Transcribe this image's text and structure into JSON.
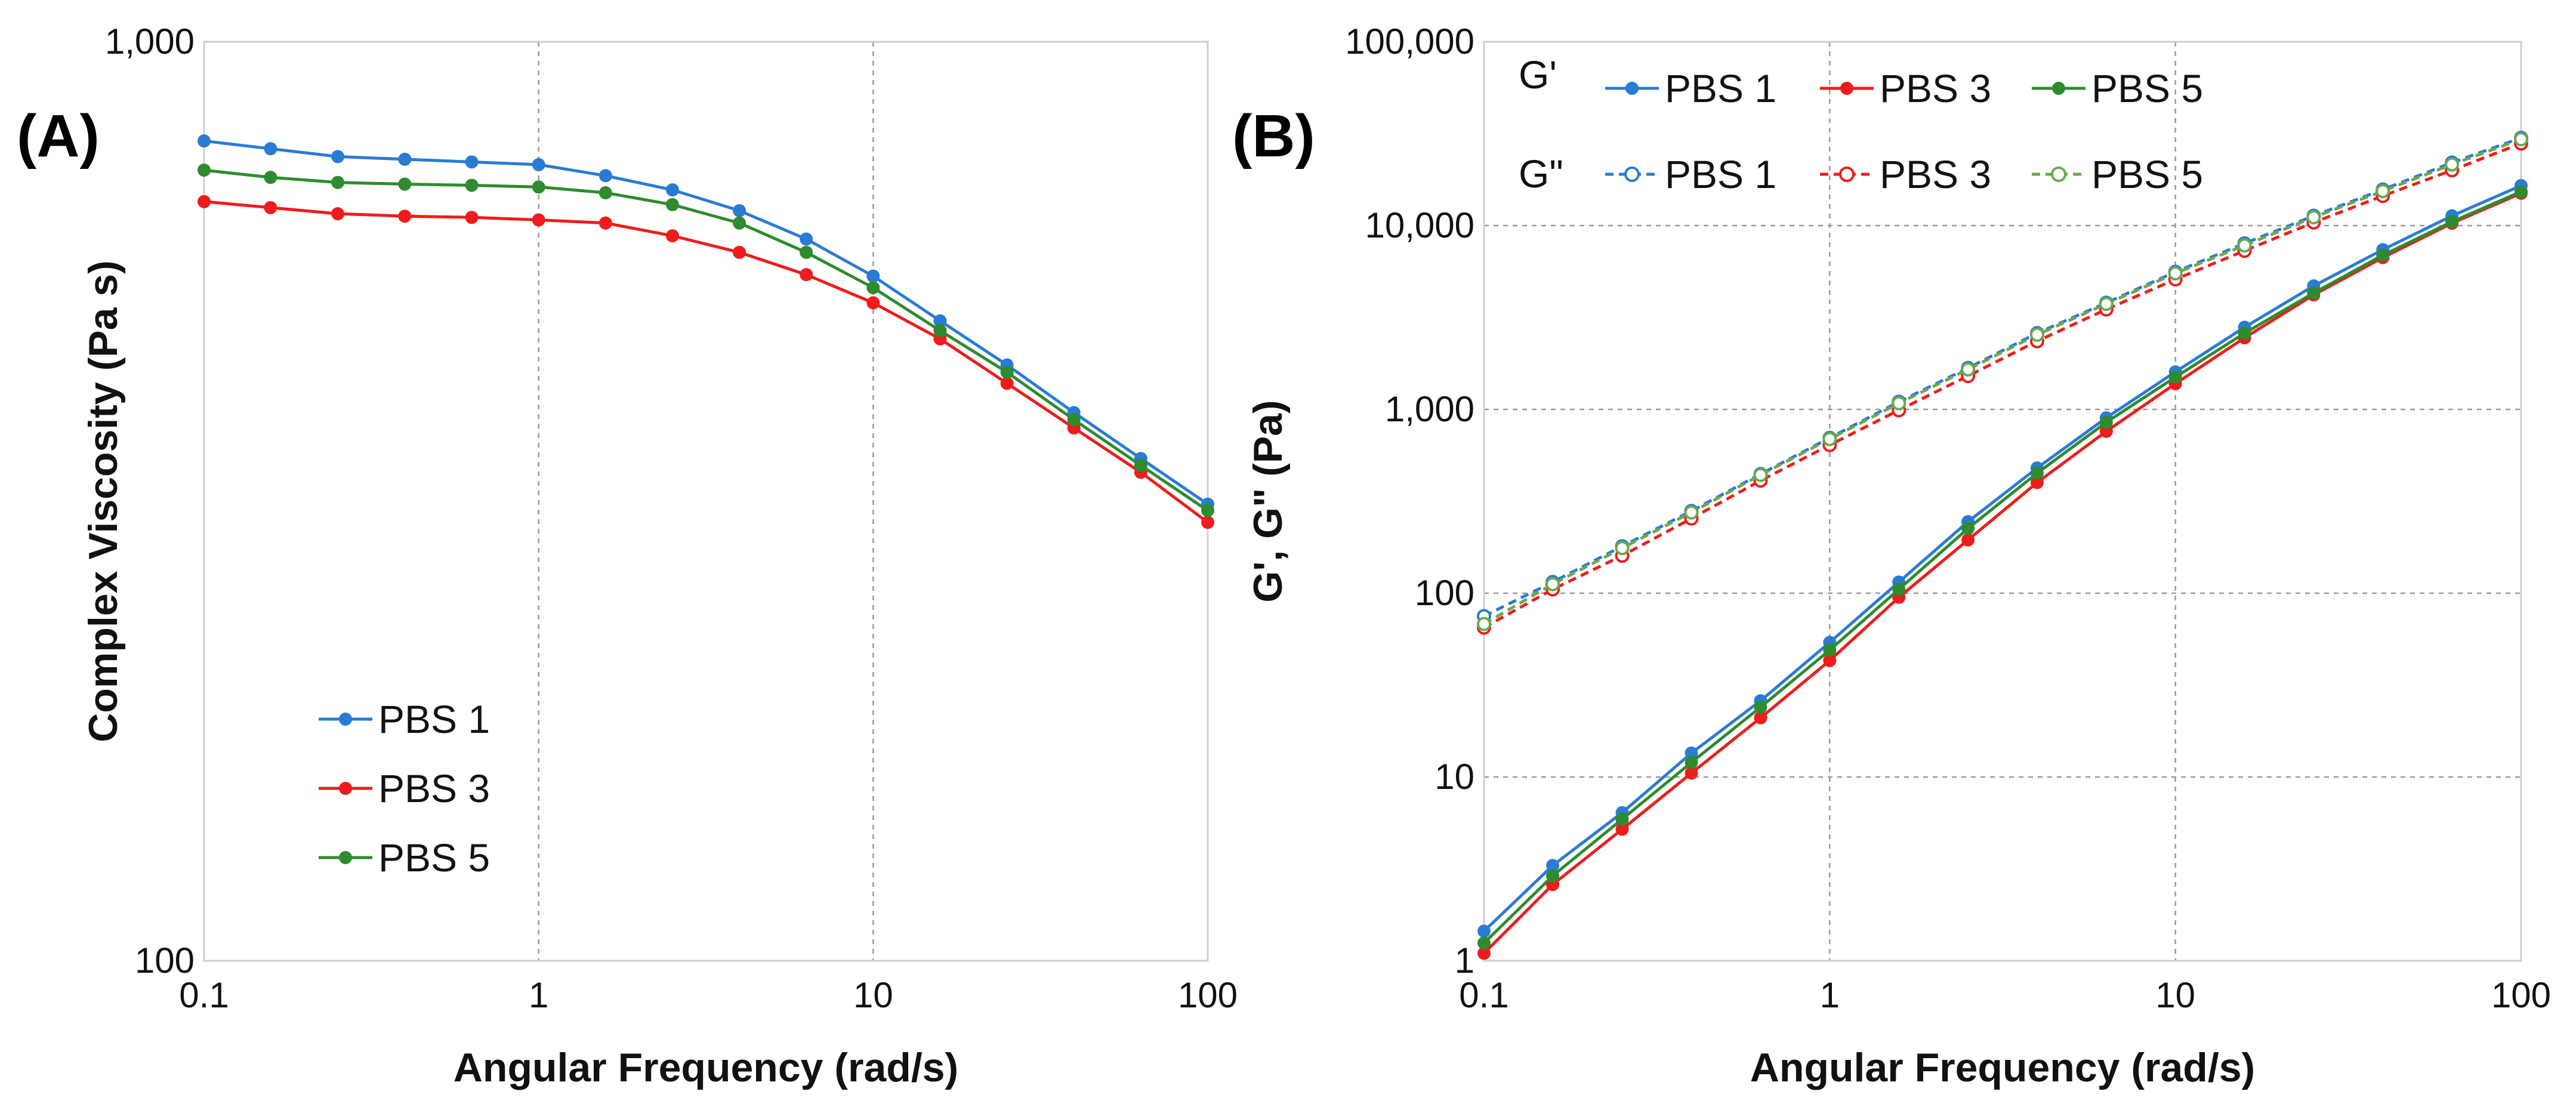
{
  "chart_data": [
    {
      "type": "line",
      "panel_label": "(A)",
      "xscale": "log",
      "yscale": "log",
      "xlabel": "Angular Frequency (rad/s)",
      "ylabel": "Complex Viscosity (Pa s)",
      "xlim": [
        0.1,
        100
      ],
      "ylim": [
        100,
        1000
      ],
      "xticks": [
        0.1,
        1,
        10,
        100
      ],
      "xtick_labels": [
        "0.1",
        "1",
        "10",
        "100"
      ],
      "yticks": [
        100,
        1000
      ],
      "ytick_labels": [
        "100",
        "1,000"
      ],
      "x": [
        0.1,
        0.158,
        0.251,
        0.398,
        0.631,
        1,
        1.585,
        2.512,
        3.981,
        6.31,
        10,
        15.85,
        25.12,
        39.81,
        63.1,
        100
      ],
      "series": [
        {
          "name": "PBS 1",
          "color": "#2a7bd4",
          "values": [
            780,
            765,
            750,
            745,
            740,
            735,
            715,
            690,
            655,
            610,
            556,
            497,
            445,
            395,
            352,
            314
          ]
        },
        {
          "name": "PBS 3",
          "color": "#ee1c1c",
          "values": [
            670,
            660,
            650,
            646,
            644,
            640,
            635,
            615,
            590,
            558,
            520,
            475,
            425,
            380,
            340,
            300
          ]
        },
        {
          "name": "PBS 5",
          "color": "#2e8b2e",
          "values": [
            725,
            712,
            703,
            700,
            698,
            695,
            685,
            665,
            635,
            590,
            540,
            485,
            437,
            388,
            346,
            309
          ]
        }
      ],
      "legend": {
        "position": "lower-left",
        "entries": [
          "PBS 1",
          "PBS 3",
          "PBS 5"
        ]
      }
    },
    {
      "type": "line",
      "panel_label": "(B)",
      "xscale": "log",
      "yscale": "log",
      "xlabel": "Angular Frequency (rad/s)",
      "ylabel": "G', G\" (Pa)",
      "xlim": [
        0.1,
        100
      ],
      "ylim": [
        1,
        100000
      ],
      "xticks": [
        0.1,
        1,
        10,
        100
      ],
      "xtick_labels": [
        "0.1",
        "1",
        "10",
        "100"
      ],
      "yticks": [
        1,
        10,
        100,
        1000,
        10000,
        100000
      ],
      "ytick_labels": [
        "1",
        "10",
        "100",
        "1,000",
        "10,000",
        "100,000"
      ],
      "x": [
        0.1,
        0.158,
        0.251,
        0.398,
        0.631,
        1,
        1.585,
        2.512,
        3.981,
        6.31,
        10,
        15.85,
        25.12,
        39.81,
        63.1,
        100
      ],
      "series": [
        {
          "name": "PBS 1",
          "group": "G'",
          "style": "solid",
          "color": "#2a7bd4",
          "values": [
            1.45,
            3.3,
            6.4,
            13.5,
            26,
            54,
            115,
            245,
            480,
            900,
            1600,
            2800,
            4700,
            7400,
            11300,
            16500
          ]
        },
        {
          "name": "PBS 3",
          "group": "G'",
          "style": "solid",
          "color": "#ee1c1c",
          "values": [
            1.1,
            2.6,
            5.2,
            10.5,
            21,
            43,
            95,
            195,
            400,
            760,
            1380,
            2450,
            4200,
            6700,
            10300,
            15000
          ]
        },
        {
          "name": "PBS 5",
          "group": "G'",
          "style": "solid",
          "color": "#2e8b2e",
          "values": [
            1.25,
            2.9,
            5.9,
            12,
            24,
            49,
            105,
            225,
            450,
            850,
            1500,
            2600,
            4300,
            6900,
            10500,
            15300
          ]
        },
        {
          "name": "PBS 1",
          "group": "G\"",
          "style": "dashed",
          "color": "#2a7bd4",
          "values": [
            75,
            115,
            180,
            280,
            445,
            700,
            1100,
            1680,
            2600,
            3800,
            5600,
            8000,
            11300,
            15700,
            22000,
            30000
          ]
        },
        {
          "name": "PBS 3",
          "group": "G\"",
          "style": "dashed",
          "color": "#ee1c1c",
          "values": [
            65,
            105,
            160,
            255,
            410,
            640,
            990,
            1520,
            2350,
            3500,
            5100,
            7300,
            10400,
            14500,
            20000,
            28000
          ]
        },
        {
          "name": "PBS 5",
          "group": "G\"",
          "style": "dashed",
          "color": "#6aa84f",
          "values": [
            68,
            112,
            176,
            275,
            440,
            690,
            1080,
            1650,
            2550,
            3750,
            5500,
            7800,
            11100,
            15400,
            21500,
            29500
          ]
        }
      ],
      "legend": {
        "position": "top-left",
        "rows": [
          {
            "group": "G'",
            "entries": [
              "PBS 1",
              "PBS 3",
              "PBS 5"
            ]
          },
          {
            "group": "G\"",
            "entries": [
              "PBS 1",
              "PBS 3",
              "PBS 5"
            ]
          }
        ]
      }
    }
  ]
}
